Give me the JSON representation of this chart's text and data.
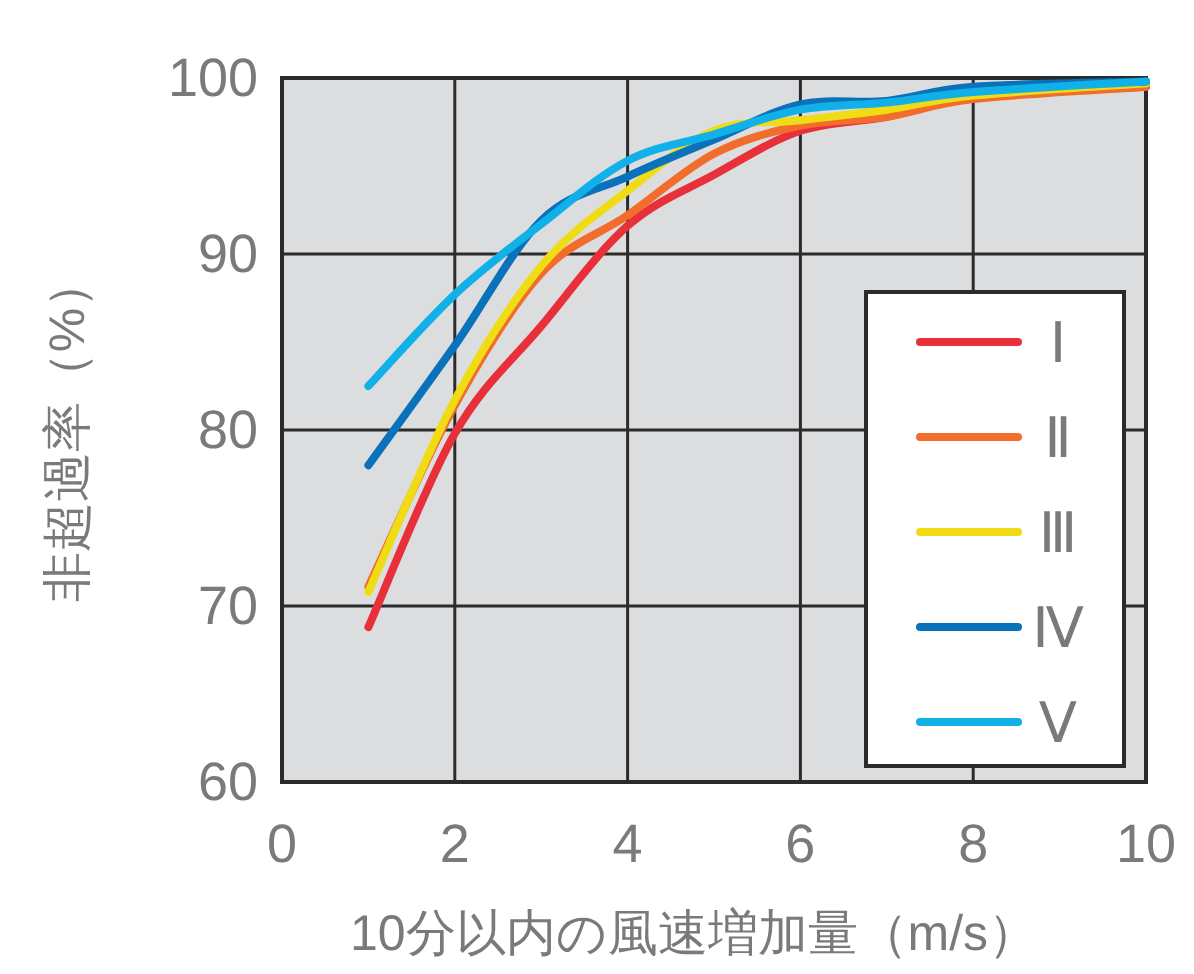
{
  "chart_data": {
    "type": "line",
    "xlabel": "10分以内の風速増加量（m/s）",
    "ylabel": "非超過率（%）",
    "x": [
      1,
      2,
      3,
      4,
      5,
      6,
      7,
      8,
      10
    ],
    "xlim": [
      0,
      10
    ],
    "ylim": [
      60,
      100
    ],
    "xticks": [
      0,
      2,
      4,
      6,
      8,
      10
    ],
    "yticks": [
      60,
      70,
      80,
      90,
      100
    ],
    "grid": true,
    "legend": "bottom right",
    "series": [
      {
        "name": "Ⅰ",
        "color": "#e8303a",
        "values": [
          68.8,
          79.8,
          85.9,
          91.6,
          94.5,
          97.0,
          97.8,
          98.9,
          99.5
        ]
      },
      {
        "name": "Ⅱ",
        "color": "#f26d2b",
        "values": [
          71.1,
          81.4,
          88.9,
          92.2,
          95.7,
          97.3,
          97.8,
          98.8,
          99.5
        ]
      },
      {
        "name": "Ⅲ",
        "color": "#f0dc14",
        "values": [
          70.8,
          81.7,
          89.3,
          93.6,
          97.0,
          97.6,
          98.2,
          99.0,
          99.7
        ]
      },
      {
        "name": "Ⅳ",
        "color": "#0a72ba",
        "values": [
          78.0,
          84.8,
          91.9,
          94.4,
          96.5,
          98.5,
          98.7,
          99.5,
          99.8
        ]
      },
      {
        "name": "Ⅴ",
        "color": "#12b0e8",
        "values": [
          82.5,
          87.7,
          91.7,
          95.3,
          96.8,
          98.2,
          98.6,
          99.2,
          99.8
        ]
      }
    ]
  }
}
